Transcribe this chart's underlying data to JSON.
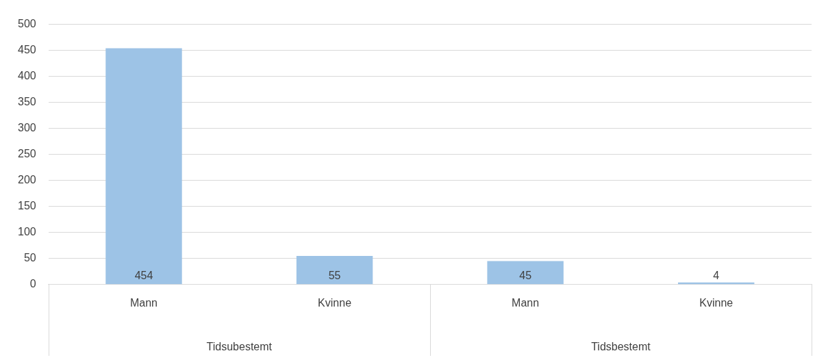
{
  "chart_data": {
    "type": "bar",
    "categories": [
      "Mann",
      "Kvinne",
      "Mann",
      "Kvinne"
    ],
    "values": [
      454,
      55,
      45,
      4
    ],
    "color": "#9dc3e6",
    "ylim": [
      0,
      500
    ],
    "yticks": [
      0,
      50,
      100,
      150,
      200,
      250,
      300,
      350,
      400,
      450,
      500
    ],
    "grid": "y",
    "data_labels": true,
    "annotations": [
      "Tidsubestemt",
      "Tidsbestemt"
    ]
  }
}
